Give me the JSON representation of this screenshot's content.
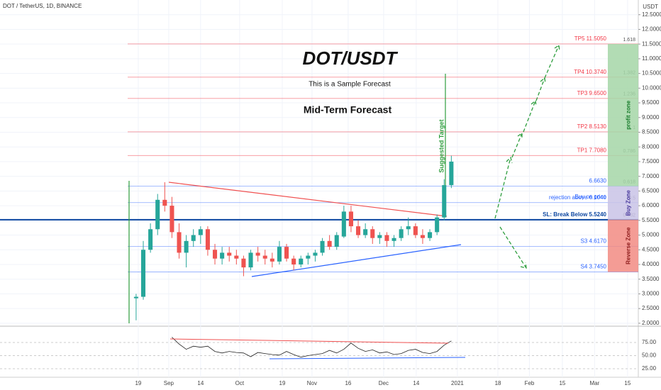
{
  "chart_data": {
    "type": "candlestick",
    "header": "DOT / TetherUS, 1D, BINANCE",
    "currency": "USDT",
    "title": "DOT/USDT",
    "subtitle": "This is a Sample Forecast",
    "annotation": "Mid-Term Forecast",
    "target_label": "Suggested Target",
    "buy_label": "Buy on price",
    "up_color": "#26a69a",
    "down_color": "#ef5350",
    "candles": {
      "open": [
        2.85,
        2.9,
        4.5,
        5.2,
        6.2,
        6.0,
        5.1,
        4.4,
        4.8,
        5.0,
        5.2,
        4.5,
        4.2,
        4.4,
        4.3,
        4.2,
        3.9,
        4.4,
        4.3,
        4.2,
        4.1,
        4.6,
        4.2,
        4.0,
        4.2,
        4.3,
        4.4,
        4.8,
        4.6,
        4.95,
        5.8,
        5.3,
        5.0,
        5.2,
        4.9,
        5.0,
        4.8,
        4.9,
        5.2,
        5.3,
        5.0,
        4.9,
        5.1,
        5.6,
        6.7
      ],
      "high": [
        3.0,
        4.8,
        5.4,
        6.4,
        6.8,
        6.3,
        5.4,
        5.0,
        5.2,
        5.3,
        5.3,
        4.7,
        4.6,
        4.6,
        4.5,
        4.3,
        4.5,
        4.6,
        4.5,
        4.4,
        4.8,
        4.7,
        4.3,
        4.3,
        4.4,
        4.5,
        4.9,
        5.0,
        5.1,
        6.0,
        6.0,
        5.5,
        5.4,
        5.3,
        5.1,
        5.1,
        5.0,
        5.3,
        5.6,
        5.4,
        5.2,
        5.2,
        5.7,
        6.9,
        7.7
      ],
      "low": [
        2.1,
        2.8,
        4.4,
        5.0,
        5.8,
        4.9,
        4.2,
        3.9,
        4.6,
        4.7,
        4.3,
        4.0,
        4.0,
        4.1,
        4.0,
        3.6,
        3.8,
        4.1,
        4.0,
        3.9,
        4.0,
        4.1,
        3.8,
        3.9,
        4.0,
        4.1,
        4.3,
        4.5,
        4.5,
        4.9,
        5.1,
        4.9,
        4.9,
        4.7,
        4.7,
        4.6,
        4.6,
        4.8,
        5.0,
        4.9,
        4.7,
        4.8,
        5.0,
        5.5,
        6.6
      ],
      "close": [
        2.9,
        4.5,
        5.2,
        6.2,
        6.0,
        5.1,
        4.4,
        4.8,
        5.0,
        5.2,
        4.5,
        4.2,
        4.4,
        4.3,
        4.2,
        3.9,
        4.4,
        4.3,
        4.2,
        4.1,
        4.6,
        4.2,
        4.0,
        4.2,
        4.3,
        4.4,
        4.8,
        4.6,
        5.0,
        5.8,
        5.3,
        5.0,
        5.2,
        4.9,
        5.0,
        4.8,
        4.9,
        5.2,
        5.3,
        5.0,
        4.9,
        5.1,
        5.6,
        6.7,
        7.5
      ]
    },
    "xlim": [
      -19,
      70.1
    ],
    "xticks": [
      {
        "value": 0.3,
        "label": "19"
      },
      {
        "value": 4.55,
        "label": "Sep"
      },
      {
        "value": 9.0,
        "label": "14"
      },
      {
        "value": 14.45,
        "label": "Oct"
      },
      {
        "value": 20.4,
        "label": "19"
      },
      {
        "value": 24.55,
        "label": "Nov"
      },
      {
        "value": 29.6,
        "label": "16"
      },
      {
        "value": 34.55,
        "label": "Dec"
      },
      {
        "value": 39.1,
        "label": "14"
      },
      {
        "value": 44.85,
        "label": "2021"
      },
      {
        "value": 50.5,
        "label": "18"
      },
      {
        "value": 54.9,
        "label": "Feb"
      },
      {
        "value": 59.5,
        "label": "15"
      },
      {
        "value": 64,
        "label": "Mar"
      },
      {
        "value": 68.6,
        "label": "15"
      }
    ],
    "ylim": [
      1.9,
      13.0
    ],
    "yticks": [
      {
        "value": 2.0,
        "label": "2.0000"
      },
      {
        "value": 2.5,
        "label": "2.5000"
      },
      {
        "value": 3.0,
        "label": "3.0000"
      },
      {
        "value": 3.5,
        "label": "3.5000"
      },
      {
        "value": 4.0,
        "label": "4.0000"
      },
      {
        "value": 4.5,
        "label": "4.5000"
      },
      {
        "value": 5.0,
        "label": "5.0000"
      },
      {
        "value": 5.5,
        "label": "5.5000"
      },
      {
        "value": 6.0,
        "label": "6.0000"
      },
      {
        "value": 6.5,
        "label": "6.5000"
      },
      {
        "value": 7.0,
        "label": "7.0000"
      },
      {
        "value": 7.5,
        "label": "7.5000"
      },
      {
        "value": 8.0,
        "label": "8.0000"
      },
      {
        "value": 8.5,
        "label": "8.5000"
      },
      {
        "value": 9.0,
        "label": "9.0000"
      },
      {
        "value": 9.5,
        "label": "9.5000"
      },
      {
        "value": 10.0,
        "label": "10.0000"
      },
      {
        "value": 10.5,
        "label": "10.5000"
      },
      {
        "value": 11.0,
        "label": "11.0000"
      },
      {
        "value": 11.5,
        "label": "11.5000"
      },
      {
        "value": 12.0,
        "label": "12.0000"
      },
      {
        "value": 12.5,
        "label": "12.5000"
      }
    ],
    "levels": [
      {
        "label": "TP5 11.5050",
        "value": 11.505,
        "fib": 1.618,
        "color": "#f23645"
      },
      {
        "label": "TP4 10.3740",
        "value": 10.374,
        "fib": 1.382,
        "color": "#f23645"
      },
      {
        "label": "TP3 9.6500",
        "value": 9.65,
        "fib": 1.236,
        "color": "#f23645"
      },
      {
        "label": "TP2 8.5130",
        "value": 8.513,
        "fib": 1,
        "color": "#f23645"
      },
      {
        "label": "TP1 7.7080",
        "value": 7.708,
        "fib": 0.786,
        "color": "#f23645"
      },
      {
        "label": "6.6630",
        "value": 6.663,
        "fib": 0.618,
        "color": "#2962ff"
      },
      {
        "label": "rejection above 6.1040",
        "value": 6.104,
        "fib": 0.5,
        "color": "#2962ff"
      },
      {
        "label": "SL: Break Below 5.5240",
        "value": 5.524,
        "fib": 0.382,
        "color": "#0d47a1"
      },
      {
        "label": "S3 4.6170",
        "value": 4.617,
        "color": "#2962ff"
      },
      {
        "label": "S4 3.7450",
        "value": 3.745,
        "color": "#2962ff"
      }
    ],
    "zones": [
      {
        "label": "profit zone",
        "from": 11.505,
        "to": 6.663,
        "color": "#a5d6a7"
      },
      {
        "label": "Buy Zone",
        "from": 6.663,
        "to": 5.524,
        "color": "#c9c3e6"
      },
      {
        "label": "Reverse Zone",
        "from": 5.524,
        "to": 3.745,
        "color": "#f28b82"
      }
    ],
    "rsi": {
      "values": [
        null,
        null,
        null,
        null,
        null,
        85,
        72,
        62,
        68,
        66,
        68,
        58,
        55,
        58,
        56,
        55,
        48,
        56,
        54,
        52,
        51,
        58,
        52,
        47,
        50,
        52,
        54,
        60,
        55,
        62,
        74,
        64,
        58,
        61,
        55,
        57,
        52,
        54,
        60,
        62,
        56,
        54,
        58,
        70,
        78
      ],
      "ylim": [
        11.5,
        103.4
      ],
      "yticks": [
        {
          "value": 25,
          "label": "25.00"
        },
        {
          "value": 50,
          "label": "50.00"
        },
        {
          "value": 75,
          "label": "75.00"
        }
      ]
    }
  }
}
